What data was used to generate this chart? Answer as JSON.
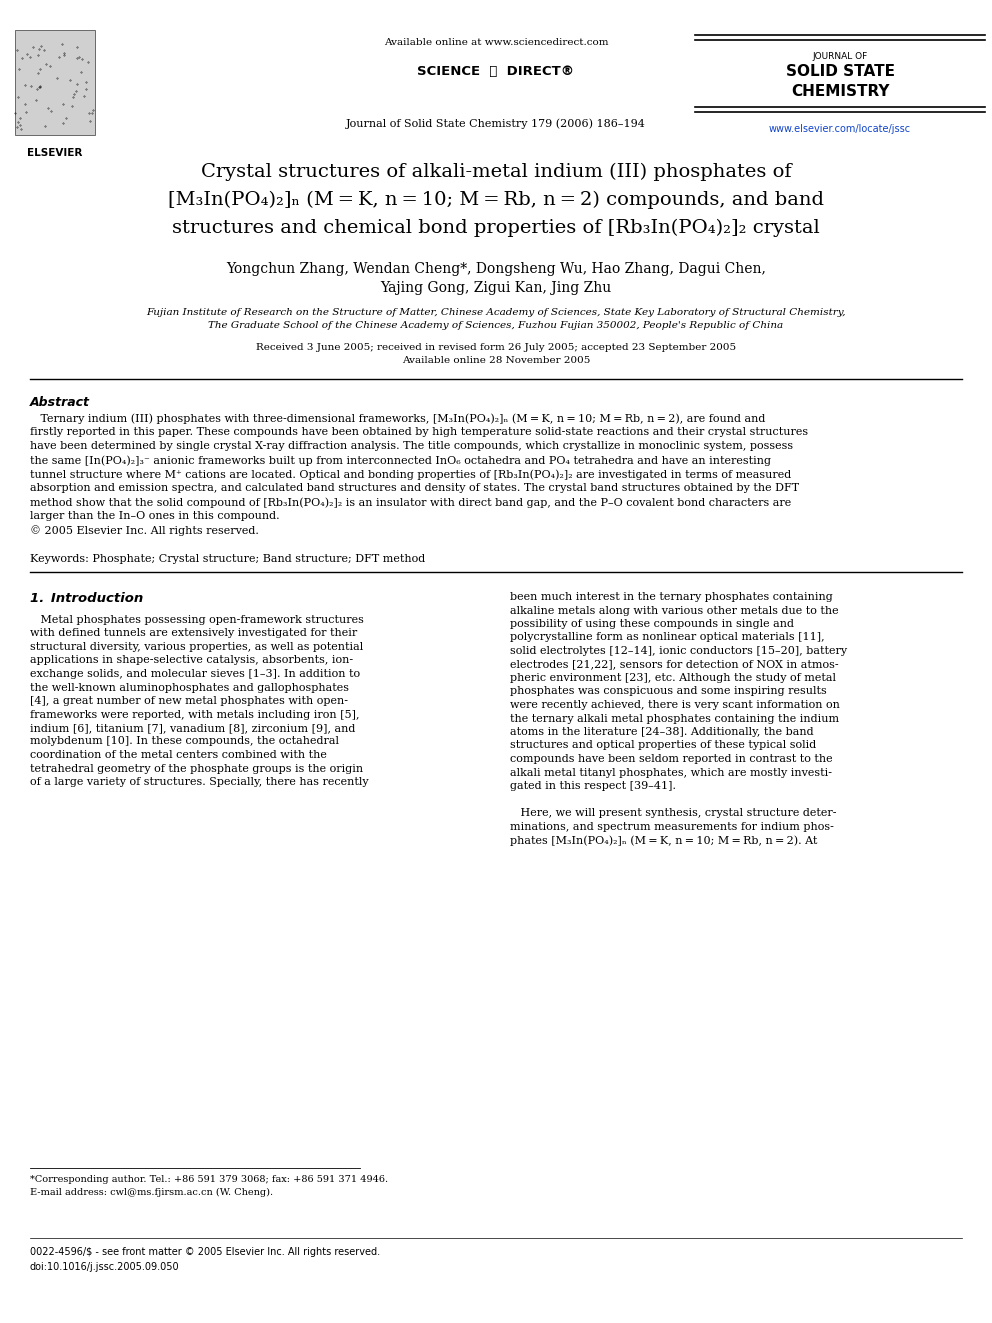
{
  "page_width": 9.92,
  "page_height": 13.23,
  "bg_color": "#ffffff",
  "header": {
    "available_online": "Available online at www.sciencedirect.com",
    "journal_name_line1": "JOURNAL OF",
    "journal_name_line2": "SOLID STATE",
    "journal_name_line3": "CHEMISTRY",
    "journal_ref": "Journal of Solid State Chemistry 179 (2006) 186–194",
    "website": "www.elsevier.com/locate/jssc",
    "elsevier_text": "ELSEVIER"
  },
  "title_line1": "Crystal structures of alkali-metal indium (III) phosphates of",
  "title_line2": "[M₃In(PO₄)₂]ₙ (M = K, n = 10; M = Rb, n = 2) compounds, and band",
  "title_line3": "structures and chemical bond properties of [Rb₃In(PO₄)₂]₂ crystal",
  "authors_line1": "Yongchun Zhang, Wendan Cheng*, Dongsheng Wu, Hao Zhang, Dagui Chen,",
  "authors_line2": "Yajing Gong, Zigui Kan, Jing Zhu",
  "affiliation_line1": "Fujian Institute of Research on the Structure of Matter, Chinese Academy of Sciences, State Key Laboratory of Structural Chemistry,",
  "affiliation_line2": "The Graduate School of the Chinese Academy of Sciences, Fuzhou Fujian 350002, People's Republic of China",
  "received": "Received 3 June 2005; received in revised form 26 July 2005; accepted 23 September 2005",
  "available": "Available online 28 November 2005",
  "abstract_title": "Abstract",
  "keywords": "Keywords: Phosphate; Crystal structure; Band structure; DFT method",
  "section1_title": "1. Introduction",
  "footnote_line1": "*Corresponding author. Tel.: +86 591 379 3068; fax: +86 591 371 4946.",
  "footnote_line2": "E-mail address: cwl@ms.fjirsm.ac.cn (W. Cheng).",
  "bottom_line1": "0022-4596/$ - see front matter © 2005 Elsevier Inc. All rights reserved.",
  "bottom_line2": "doi:10.1016/j.jssc.2005.09.050"
}
